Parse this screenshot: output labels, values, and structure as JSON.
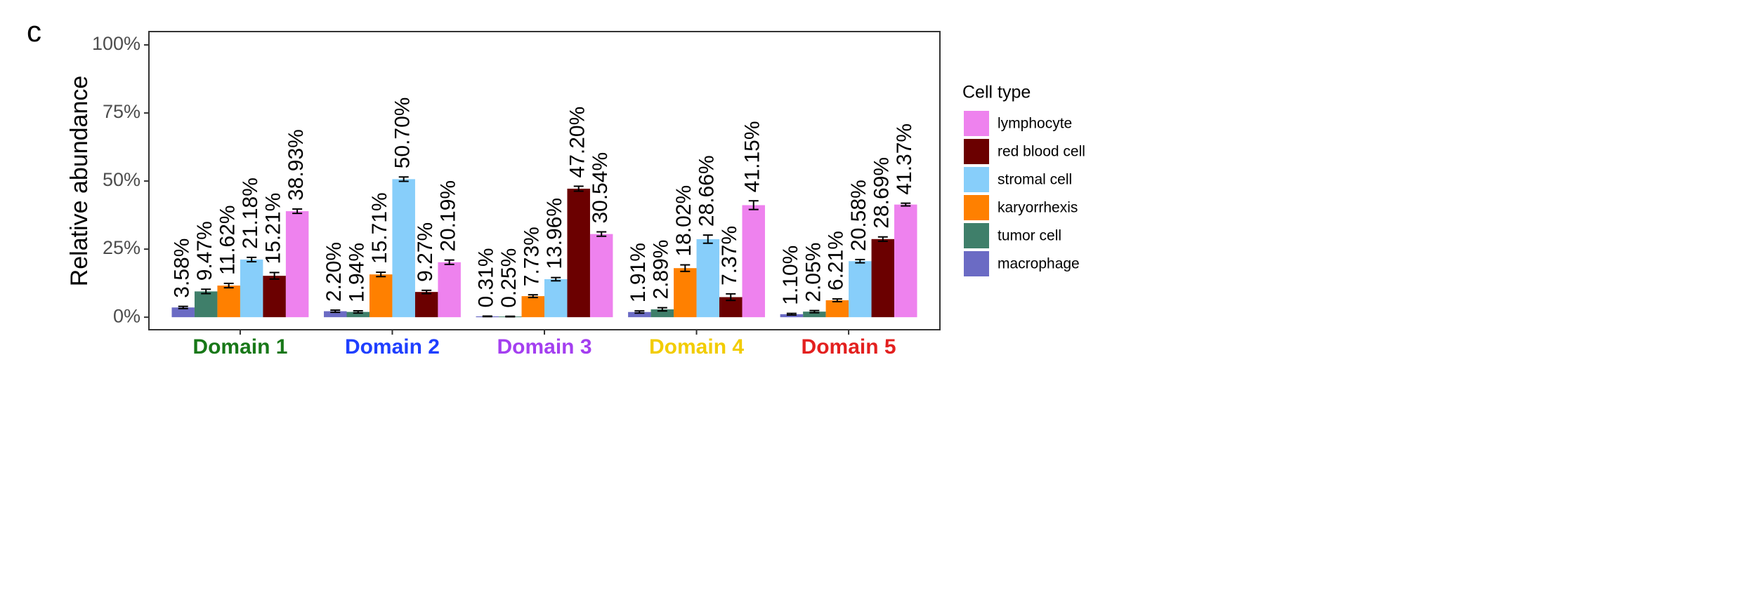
{
  "chart_data": {
    "type": "bar",
    "panel_label": "c",
    "y_label": "Relative abundance",
    "legend_title": "Cell type",
    "categories": [
      "Domain 1",
      "Domain 2",
      "Domain 3",
      "Domain 4",
      "Domain 5"
    ],
    "category_colors": [
      "#187818",
      "#1f3fff",
      "#a43ff0",
      "#f2cc00",
      "#e3201f"
    ],
    "ylim": [
      -4.6,
      104.9
    ],
    "yticks": [
      {
        "value": 0,
        "label": "0%"
      },
      {
        "value": 25,
        "label": "25%"
      },
      {
        "value": 50,
        "label": "50%"
      },
      {
        "value": 75,
        "label": "75%"
      },
      {
        "value": 100,
        "label": "100%"
      }
    ],
    "series": [
      {
        "name": "macrophage",
        "color": "#6b6bc4",
        "values": [
          3.58,
          2.2,
          0.31,
          1.91,
          1.1
        ],
        "errors": [
          0.4,
          0.4,
          0.1,
          0.4,
          0.3
        ],
        "value_labels": [
          "3.58%",
          "2.20%",
          "0.31%",
          "1.91%",
          "1.10%"
        ]
      },
      {
        "name": "tumor cell",
        "color": "#3f7f6a",
        "values": [
          9.47,
          1.94,
          0.25,
          2.89,
          2.05
        ],
        "errors": [
          0.8,
          0.4,
          0.1,
          0.6,
          0.4
        ],
        "value_labels": [
          "9.47%",
          "1.94%",
          "0.25%",
          "2.89%",
          "2.05%"
        ]
      },
      {
        "name": "karyorrhexis",
        "color": "#ff8000",
        "values": [
          11.62,
          15.71,
          7.73,
          18.02,
          6.21
        ],
        "errors": [
          0.8,
          0.8,
          0.5,
          1.2,
          0.5
        ],
        "value_labels": [
          "11.62%",
          "15.71%",
          "7.73%",
          "18.02%",
          "6.21%"
        ]
      },
      {
        "name": "stromal cell",
        "color": "#87cefa",
        "values": [
          21.18,
          50.7,
          13.96,
          28.66,
          20.58
        ],
        "errors": [
          0.8,
          0.8,
          0.6,
          1.5,
          0.6
        ],
        "value_labels": [
          "21.18%",
          "50.70%",
          "13.96%",
          "28.66%",
          "20.58%"
        ]
      },
      {
        "name": "red blood cell",
        "color": "#6b0000",
        "values": [
          15.21,
          9.27,
          47.2,
          7.37,
          28.69
        ],
        "errors": [
          1.2,
          0.6,
          0.9,
          1.2,
          0.8
        ],
        "value_labels": [
          "15.21%",
          "9.27%",
          "47.20%",
          "7.37%",
          "28.69%"
        ]
      },
      {
        "name": "lymphocyte",
        "color": "#ee82ee",
        "values": [
          38.93,
          20.19,
          30.54,
          41.15,
          41.37
        ],
        "errors": [
          0.8,
          0.8,
          0.8,
          1.6,
          0.5
        ],
        "value_labels": [
          "38.93%",
          "20.19%",
          "30.54%",
          "41.15%",
          "41.37%"
        ]
      }
    ]
  }
}
